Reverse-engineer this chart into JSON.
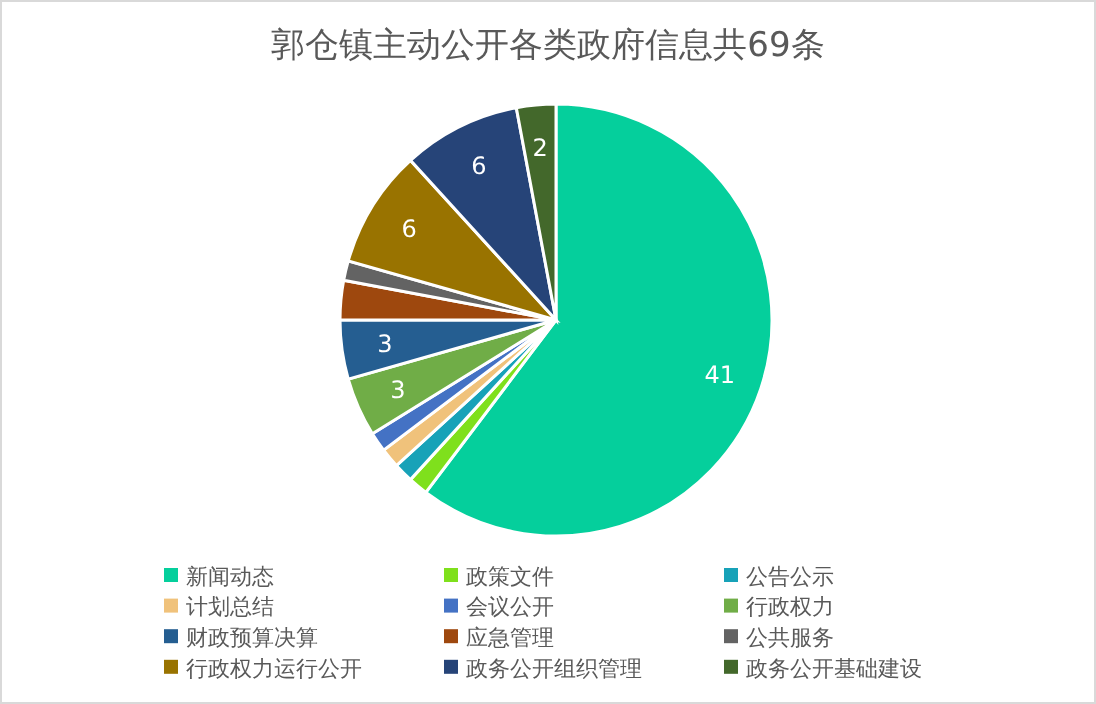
{
  "chart_data": {
    "type": "pie",
    "title": "郭仓镇主动公开各类政府信息共69条",
    "categories": [
      "新闻动态",
      "政策文件",
      "公告公示",
      "计划总结",
      "会议公开",
      "行政权力",
      "财政预算决算",
      "应急管理",
      "公共服务",
      "行政权力运行公开",
      "政务公开组织管理",
      "政务公开基础建设"
    ],
    "values": [
      41,
      1,
      1,
      1,
      1,
      3,
      3,
      2,
      1,
      6,
      6,
      2
    ],
    "colors": [
      "#05cf9c",
      "#7fe01c",
      "#17a2b8",
      "#f0c27b",
      "#4472c4",
      "#70ad47",
      "#255e91",
      "#9e480e",
      "#636363",
      "#997300",
      "#264478",
      "#43682b"
    ],
    "value_labels": [
      "41",
      null,
      null,
      null,
      null,
      "3",
      "3",
      null,
      null,
      "6",
      "6",
      "2"
    ],
    "legend": "bottom"
  }
}
